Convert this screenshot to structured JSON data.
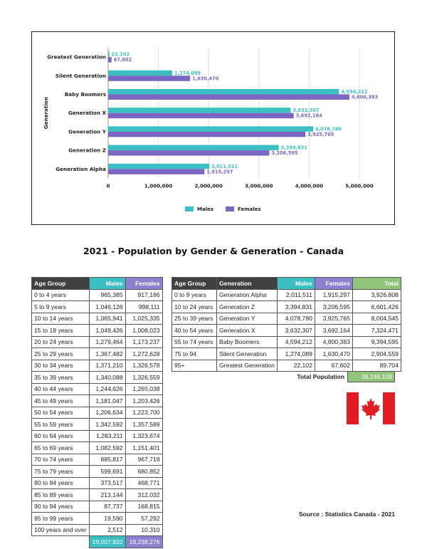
{
  "chart_data": {
    "type": "bar",
    "orientation": "horizontal",
    "categories": [
      "Greatest Generation",
      "Silent Generation",
      "Baby Boomers",
      "Generation X",
      "Generation Y",
      "Generation Z",
      "Generation Alpha"
    ],
    "series": [
      {
        "name": "Males",
        "color": "#3cbfc3",
        "values": [
          22102,
          1274089,
          4594212,
          3632307,
          4078780,
          3394831,
          2011511
        ],
        "labels": [
          "22,102",
          "1,274,089",
          "4,594,212",
          "3,632,307",
          "4,078,780",
          "3,394,831",
          "2,011,511"
        ]
      },
      {
        "name": "Females",
        "color": "#7b66c4",
        "values": [
          67602,
          1630470,
          4800383,
          3692164,
          3925765,
          3206595,
          1915297
        ],
        "labels": [
          "67,602",
          "1,630,470",
          "4,800,383",
          "3,692,164",
          "3,925,765",
          "3,206,595",
          "1,915,297"
        ]
      }
    ],
    "xlim": [
      0,
      5000000
    ],
    "xticks": [
      0,
      1000000,
      2000000,
      3000000,
      4000000,
      5000000
    ],
    "xtick_labels": [
      "0",
      "1,000,000",
      "2,000,000",
      "3,000,000",
      "4,000,000",
      "5,000,000"
    ],
    "ylabel": "Generation",
    "grid": "vertical",
    "legend": "bottom"
  },
  "report": {
    "title": "2021 - Population by Gender & Generation - Canada",
    "total_population_label": "Total Population",
    "total_population_value": "38,246,108",
    "source": "Source : Statistics Canada - 2021"
  },
  "age_table": {
    "headers": [
      "Age Group",
      "Males",
      "Females"
    ],
    "rows": [
      [
        "0 to 4 years",
        "965,385",
        "917,186"
      ],
      [
        "5 to 9 years",
        "1,046,126",
        "998,111"
      ],
      [
        "10 to 14 years",
        "1,065,941",
        "1,025,335"
      ],
      [
        "15 to 19 years",
        "1,049,426",
        "1,008,023"
      ],
      [
        "20 to 24 years",
        "1,279,464",
        "1,173,237"
      ],
      [
        "25 to 29 years",
        "1,367,482",
        "1,272,628"
      ],
      [
        "30 to 34 years",
        "1,371,210",
        "1,326,578"
      ],
      [
        "35 to 39 years",
        "1,340,088",
        "1,326,559"
      ],
      [
        "40 to 44 years",
        "1,244,626",
        "1,265,038"
      ],
      [
        "45 to 49 years",
        "1,181,047",
        "1,203,426"
      ],
      [
        "50 to 54 years",
        "1,206,634",
        "1,223,700"
      ],
      [
        "55 to 59 years",
        "1,342,592",
        "1,357,589"
      ],
      [
        "60 to 64 years",
        "1,283,211",
        "1,323,674"
      ],
      [
        "65 to 69 years",
        "1,082,592",
        "1,151,401"
      ],
      [
        "70 to 74 years",
        "885,817",
        "967,719"
      ],
      [
        "75 to 79 years",
        "599,691",
        "680,852"
      ],
      [
        "80 to 84 years",
        "373,517",
        "468,771"
      ],
      [
        "85 to 89 years",
        "213,144",
        "312,032"
      ],
      [
        "90 to 94 years",
        "87,737",
        "168,815"
      ],
      [
        "95 to 99 years",
        "19,590",
        "57,292"
      ],
      [
        "100 years and over",
        "2,512",
        "10,310"
      ]
    ],
    "totals": [
      "",
      "19,007,832",
      "19,238,276"
    ]
  },
  "gen_table": {
    "headers": [
      "Age Group",
      "Generation",
      "Males",
      "Females",
      "Total"
    ],
    "rows": [
      [
        "0 to 9 years",
        "Generation Alpha",
        "2,011,511",
        "1,915,297",
        "3,926,808"
      ],
      [
        "10 to 24 years",
        "Generation Z",
        "3,394,831",
        "3,206,595",
        "6,601,426"
      ],
      [
        "25 to 39 years",
        "Generation Y",
        "4,078,780",
        "3,925,765",
        "8,004,545"
      ],
      [
        "40 to 54 years",
        "Generation X",
        "3,632,307",
        "3,692,164",
        "7,324,471"
      ],
      [
        "55 to 74 years",
        "Baby Boomers",
        "4,594,212",
        "4,800,383",
        "9,394,595"
      ],
      [
        "75 to 94",
        "Silent Generation",
        "1,274,089",
        "1,630,470",
        "2,904,559"
      ],
      [
        "95+",
        "Greatest Generation",
        "22,102",
        "67,602",
        "89,704"
      ]
    ]
  },
  "flag": {
    "icon": "canada-flag-icon",
    "red": "#e21c23",
    "white": "#ffffff"
  }
}
